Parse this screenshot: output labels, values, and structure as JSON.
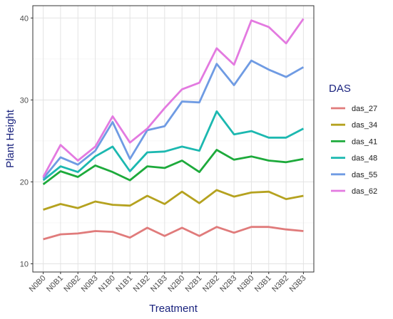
{
  "chart_data": {
    "type": "line",
    "xlabel": "Treatment",
    "ylabel": "Plant Height",
    "ylim": [
      9,
      41.5
    ],
    "yticks": [
      10,
      20,
      30,
      40
    ],
    "grid": true,
    "legend_title": "DAS",
    "legend_position": "right",
    "categories": [
      "N0B0",
      "N0B1",
      "N0B2",
      "N0B3",
      "N1B0",
      "N1B1",
      "N1B2",
      "N1B3",
      "N2B0",
      "N2B1",
      "N2B2",
      "N2B3",
      "N3B0",
      "N3B1",
      "N3B2",
      "N3B3"
    ],
    "series": [
      {
        "name": "das_27",
        "color": "#e07b7b",
        "values": [
          13.0,
          13.6,
          13.7,
          14.0,
          13.9,
          13.2,
          14.4,
          13.4,
          14.4,
          13.4,
          14.5,
          13.8,
          14.5,
          14.5,
          14.2,
          14.0
        ]
      },
      {
        "name": "das_34",
        "color": "#b5a21f",
        "values": [
          16.6,
          17.3,
          16.8,
          17.6,
          17.2,
          17.1,
          18.3,
          17.3,
          18.8,
          17.4,
          19.0,
          18.2,
          18.7,
          18.8,
          17.9,
          18.3
        ]
      },
      {
        "name": "das_41",
        "color": "#1daa3b",
        "values": [
          19.7,
          21.3,
          20.6,
          22.0,
          21.2,
          20.2,
          21.9,
          21.7,
          22.6,
          21.2,
          23.9,
          22.7,
          23.1,
          22.6,
          22.4,
          22.8
        ]
      },
      {
        "name": "das_48",
        "color": "#1cb8b0",
        "values": [
          20.2,
          21.9,
          21.2,
          23.1,
          24.3,
          21.3,
          23.6,
          23.7,
          24.3,
          23.8,
          28.6,
          25.8,
          26.2,
          25.4,
          25.4,
          26.5
        ]
      },
      {
        "name": "das_55",
        "color": "#6f9be3",
        "values": [
          20.4,
          23.0,
          22.1,
          23.8,
          27.3,
          22.8,
          26.3,
          26.8,
          29.8,
          29.7,
          34.4,
          31.8,
          34.8,
          33.7,
          32.8,
          34.0
        ]
      },
      {
        "name": "das_62",
        "color": "#e37ae0",
        "values": [
          20.6,
          24.5,
          22.6,
          24.3,
          28.0,
          24.8,
          26.5,
          29.0,
          31.3,
          32.1,
          36.3,
          34.3,
          39.7,
          38.9,
          36.9,
          39.9
        ]
      }
    ]
  }
}
